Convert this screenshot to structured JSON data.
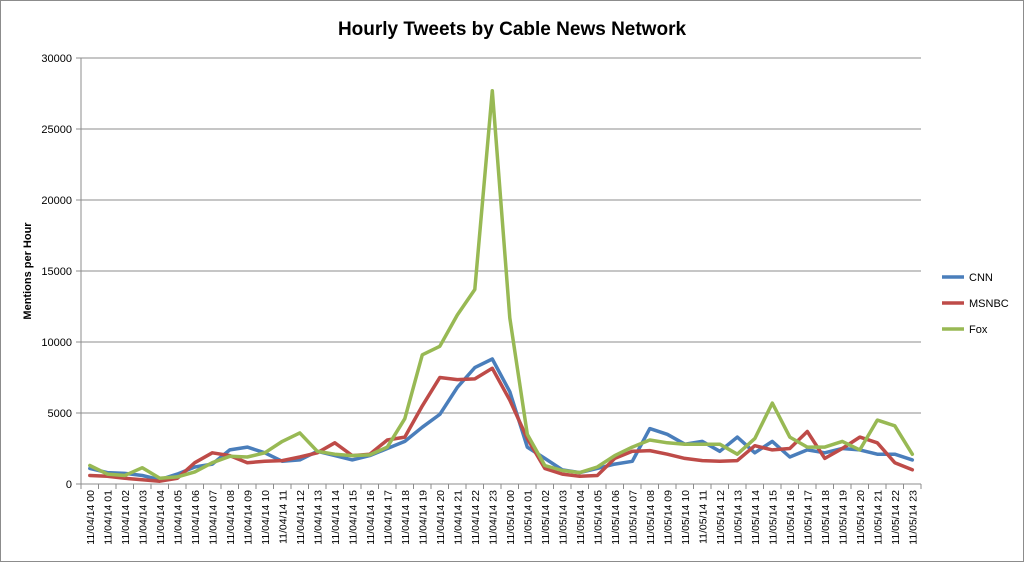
{
  "chart_data": {
    "type": "line",
    "title": "Hourly Tweets by Cable News Network",
    "xlabel": "",
    "ylabel": "Mentions per Hour",
    "ylim": [
      0,
      30000
    ],
    "yticks": [
      0,
      5000,
      10000,
      15000,
      20000,
      25000,
      30000
    ],
    "grid": "horizontal",
    "legend_position": "right",
    "categories": [
      "11/04/14 00",
      "11/04/14 01",
      "11/04/14 02",
      "11/04/14 03",
      "11/04/14 04",
      "11/04/14 05",
      "11/04/14 06",
      "11/04/14 07",
      "11/04/14 08",
      "11/04/14 09",
      "11/04/14 10",
      "11/04/14 11",
      "11/04/14 12",
      "11/04/14 13",
      "11/04/14 14",
      "11/04/14 15",
      "11/04/14 16",
      "11/04/14 17",
      "11/04/14 18",
      "11/04/14 19",
      "11/04/14 20",
      "11/04/14 21",
      "11/04/14 22",
      "11/04/14 23",
      "11/05/14 00",
      "11/05/14 01",
      "11/05/14 02",
      "11/05/14 03",
      "11/05/14 04",
      "11/05/14 05",
      "11/05/14 06",
      "11/05/14 07",
      "11/05/14 08",
      "11/05/14 09",
      "11/05/14 10",
      "11/05/14 11",
      "11/05/14 12",
      "11/05/14 13",
      "11/05/14 14",
      "11/05/14 15",
      "11/05/14 16",
      "11/05/14 17",
      "11/05/14 18",
      "11/05/14 19",
      "11/05/14 20",
      "11/05/14 21",
      "11/05/14 22",
      "11/05/14 23"
    ],
    "series": [
      {
        "name": "CNN",
        "color": "#4a7ebb",
        "values": [
          1100,
          800,
          750,
          600,
          300,
          700,
          1200,
          1400,
          2400,
          2600,
          2200,
          1600,
          1700,
          2300,
          2000,
          1700,
          2000,
          2500,
          3000,
          4000,
          4900,
          6800,
          8200,
          8800,
          6500,
          2600,
          1800,
          1000,
          800,
          1100,
          1400,
          1600,
          3900,
          3500,
          2800,
          3000,
          2300,
          3300,
          2200,
          3000,
          1900,
          2400,
          2200,
          2500,
          2400,
          2100,
          2100,
          1700
        ]
      },
      {
        "name": "MSNBC",
        "color": "#be4b48",
        "values": [
          600,
          550,
          400,
          300,
          200,
          400,
          1500,
          2200,
          2000,
          1500,
          1600,
          1650,
          1900,
          2200,
          2900,
          2000,
          2100,
          3100,
          3300,
          5500,
          7500,
          7350,
          7400,
          8150,
          5900,
          3200,
          1100,
          700,
          550,
          600,
          1800,
          2300,
          2350,
          2100,
          1800,
          1650,
          1600,
          1650,
          2700,
          2400,
          2500,
          3700,
          1800,
          2500,
          3300,
          2900,
          1500,
          1000
        ]
      },
      {
        "name": "Fox",
        "color": "#98b954",
        "values": [
          1300,
          700,
          600,
          1150,
          400,
          500,
          850,
          1500,
          1950,
          1900,
          2200,
          3000,
          3600,
          2300,
          2100,
          2000,
          2050,
          2600,
          4600,
          9100,
          9700,
          11900,
          13700,
          27700,
          11700,
          3500,
          1300,
          950,
          800,
          1200,
          2000,
          2600,
          3100,
          2900,
          2800,
          2800,
          2800,
          2100,
          3200,
          5700,
          3300,
          2600,
          2600,
          3000,
          2400,
          4500,
          4100,
          2100
        ]
      }
    ]
  }
}
